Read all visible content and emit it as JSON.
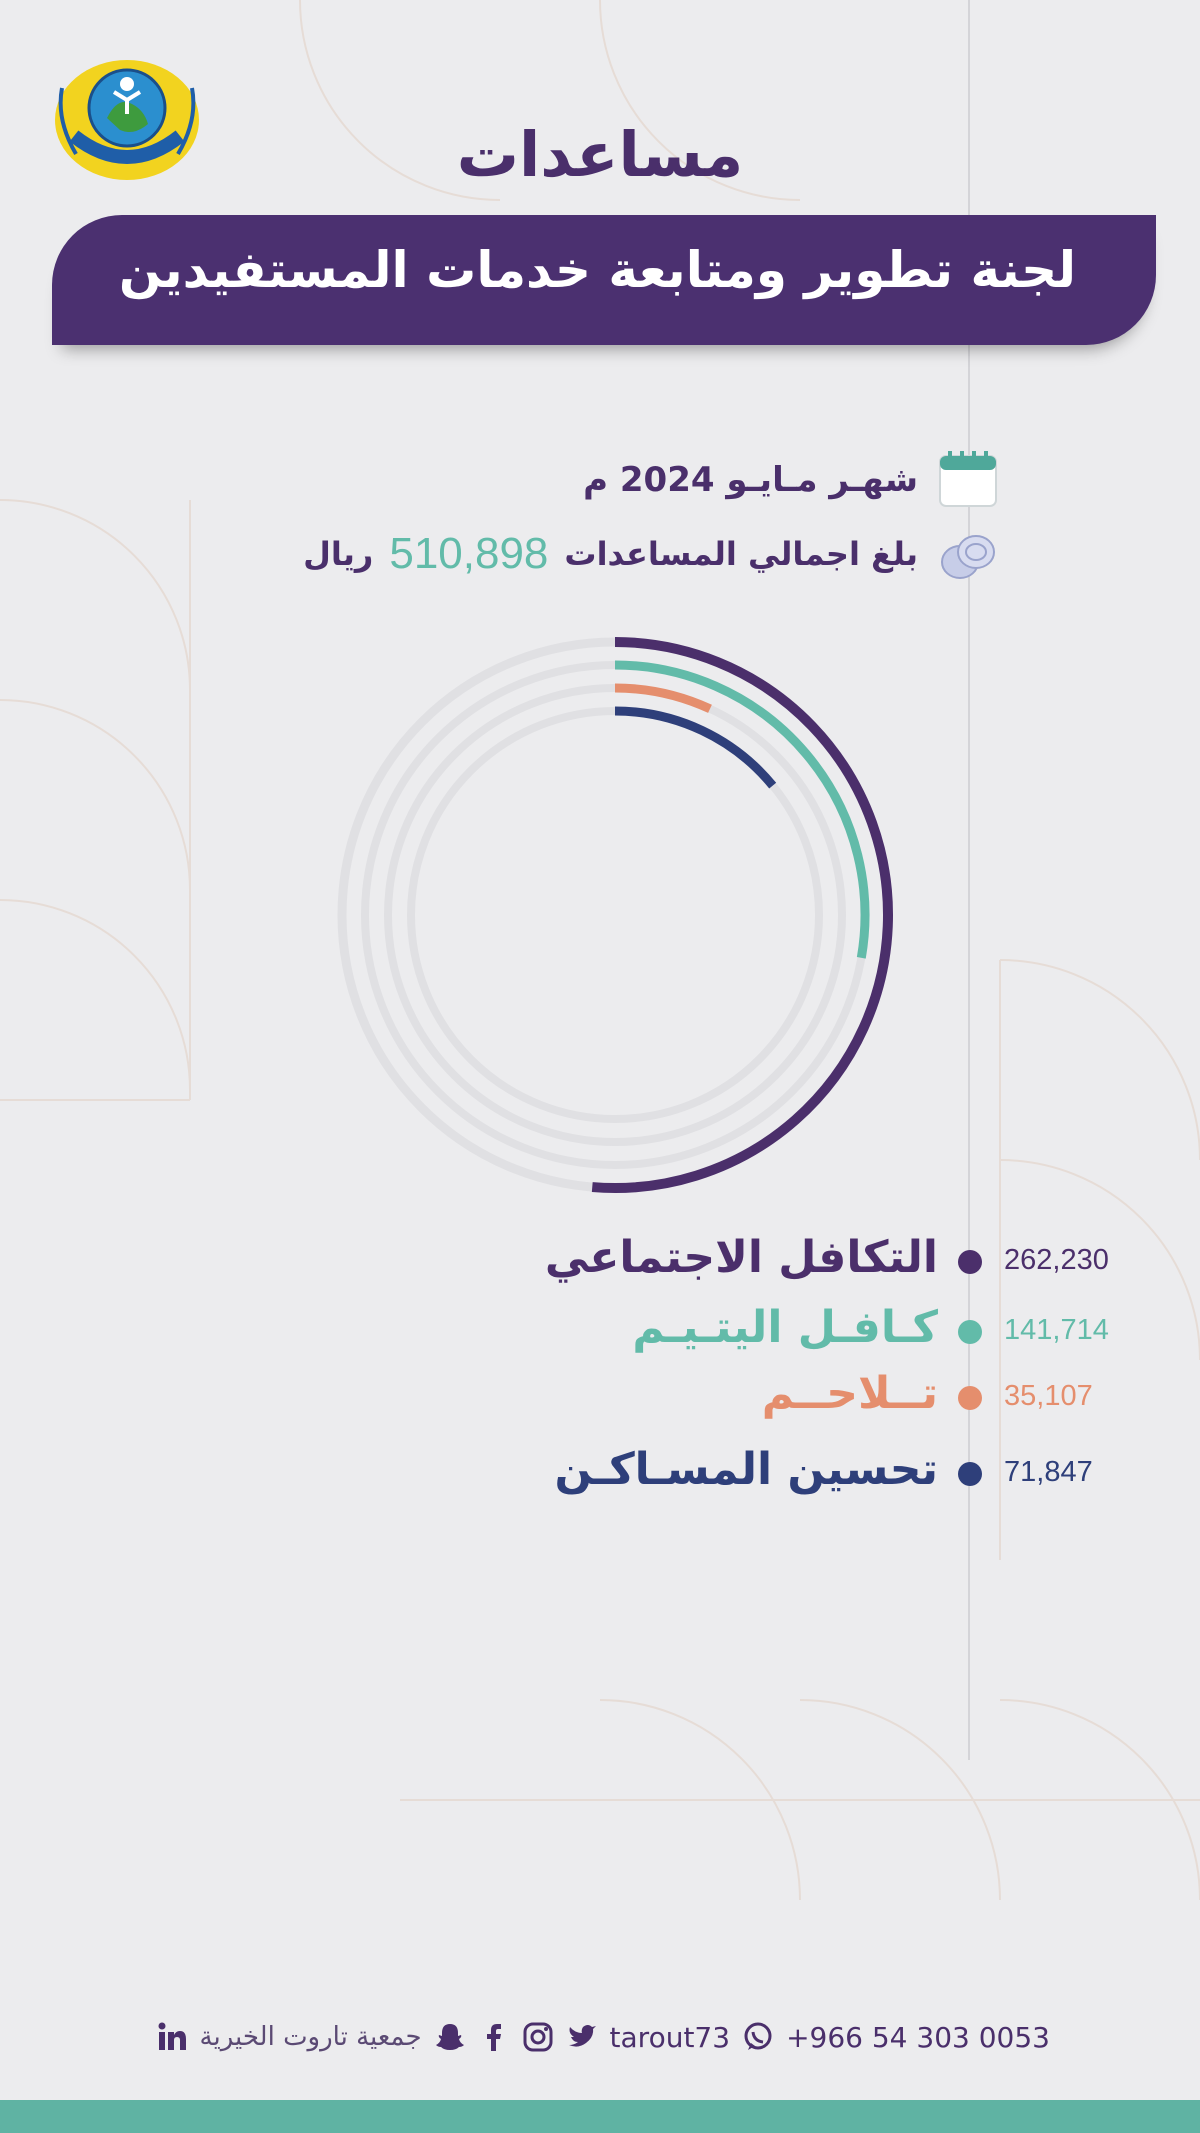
{
  "header": {
    "title": "مساعدات",
    "subtitle": "لجنة تطوير ومتابعة خدمات المستفيدين"
  },
  "info": {
    "month": "شهـر مـايـو 2024 م",
    "total_label": "بلغ اجمالي المساعدات",
    "total_value": "510,898",
    "total_unit": "ريال"
  },
  "chart_data": {
    "type": "radial_bar",
    "total": 510898,
    "series": [
      {
        "name": "التكافل الاجتماعي",
        "value": 262230,
        "value_label": "262,230",
        "color": "#4b2f6b"
      },
      {
        "name": "كـافـل اليتـيـم",
        "value": 141714,
        "value_label": "141,714",
        "color": "#62bba9"
      },
      {
        "name": "تــلاحــم",
        "value": 35107,
        "value_label": "35,107",
        "color": "#e58e6d"
      },
      {
        "name": "تحسين المسـاكـن",
        "value": 71847,
        "value_label": "71,847",
        "color": "#2e3f7a"
      }
    ]
  },
  "footer": {
    "phone": "+966 54 303 0053",
    "handle": "tarout73",
    "org": "جمعية تاروت الخيرية",
    "icons": [
      "whatsapp-icon",
      "twitter-icon",
      "instagram-icon",
      "facebook-icon",
      "snapchat-icon",
      "linkedin-icon"
    ]
  },
  "colors": {
    "purple": "#4b3070",
    "teal": "#5fb3a3",
    "background": "#ececee"
  }
}
